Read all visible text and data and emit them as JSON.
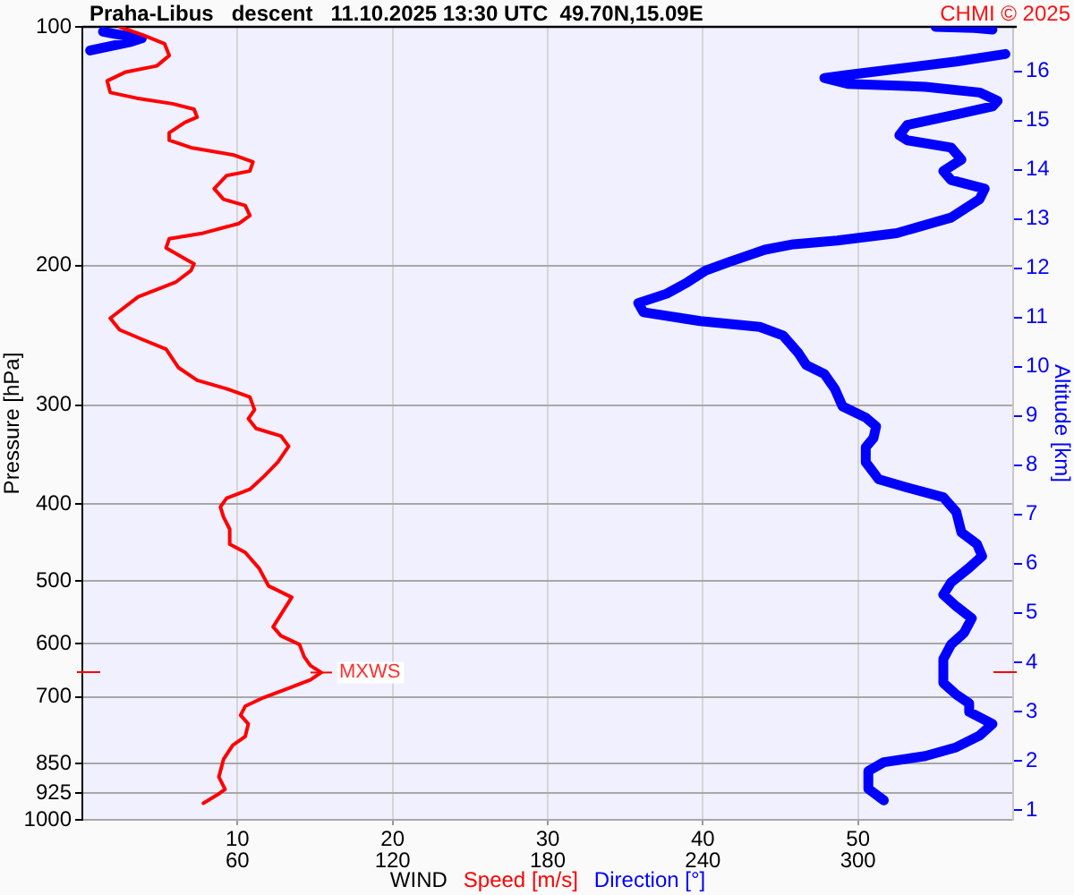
{
  "chart_data": {
    "type": "line",
    "title": "Praha-Libus   descent   11.10.2025 13:30 UTC  49.70N,15.09E",
    "xlabel": "WIND",
    "ylabel": "Pressure [hPa]",
    "y2label": "Altitude [km]",
    "annotations": [
      "CHMI © 2025",
      {
        "text": "MXWS",
        "x": 15.4,
        "y": 652
      }
    ],
    "xlim": [
      0,
      60
    ],
    "xticks": [
      10,
      20,
      30,
      40,
      50
    ],
    "x2lim": [
      0,
      360
    ],
    "x2ticks": [
      60,
      120,
      180,
      240,
      300
    ],
    "ylim": [
      1000,
      100
    ],
    "yticks": [
      100,
      200,
      300,
      400,
      500,
      600,
      700,
      850,
      925,
      1000
    ],
    "y2lim": [
      0.8,
      16.9
    ],
    "y2ticks": [
      1,
      2,
      3,
      4,
      5,
      6,
      7,
      8,
      9,
      10,
      11,
      12,
      13,
      14,
      15,
      16
    ],
    "log": true,
    "grid": true,
    "legend": "bottom",
    "series": [
      {
        "name": "Speed [m/s]",
        "color": "#ff0000",
        "x": [
          2.4,
          3.9,
          5.3,
          5.6,
          4.8,
          2.8,
          1.6,
          1.8,
          3.5,
          5.8,
          7.2,
          7.4,
          6.6,
          5.6,
          5.6,
          7.0,
          9.7,
          11.0,
          10.8,
          9.3,
          8.5,
          9.1,
          10.5,
          10.8,
          10.1,
          7.8,
          5.6,
          5.4,
          6.6,
          7.2,
          7.0,
          6.0,
          3.6,
          1.8,
          2.4,
          3.9,
          5.4,
          6.2,
          7.4,
          9.3,
          10.8,
          11.1,
          10.7,
          11.2,
          12.8,
          13.3,
          12.6,
          11.7,
          10.8,
          9.3,
          8.9,
          9.1,
          9.5,
          9.5,
          10.5,
          11.4,
          12.0,
          13.5,
          12.8,
          12.3,
          12.8,
          14.0,
          14.3,
          14.7,
          15.4,
          14.7,
          13.5,
          11.7,
          10.5,
          10.2,
          10.7,
          10.5,
          9.7,
          9.1,
          8.8,
          9.2,
          8.7,
          7.8
        ],
        "values": [
          100,
          102.4,
          105,
          108.7,
          112,
          114,
          117,
          121,
          123,
          125,
          127,
          130,
          132,
          136,
          139,
          142,
          145,
          148,
          152,
          154,
          160,
          165,
          168,
          173,
          177,
          182,
          185,
          190,
          196,
          199,
          203,
          210,
          219,
          233,
          241,
          248,
          255,
          269,
          279,
          286,
          293,
          304,
          312,
          321,
          328,
          338,
          354,
          369,
          383,
          393,
          403,
          415,
          430,
          449,
          460,
          482,
          507,
          524,
          551,
          571,
          586,
          601,
          623,
          639,
          652,
          666,
          680,
          701,
          719,
          738,
          757,
          785,
          805,
          839,
          883,
          915,
          930,
          953
        ]
      },
      {
        "name": "Direction [°]",
        "color": "#0000ff",
        "axis": "x2",
        "x": [
          330,
          345,
          352,
          null,
          8,
          12,
          23,
          19,
          3,
          null,
          357,
          338,
          315,
          296,
          287,
          296,
          326,
          347,
          354,
          352,
          338,
          319,
          316,
          319,
          336,
          340,
          333,
          336,
          349,
          347,
          336,
          315,
          292,
          275,
          264,
          250,
          241,
          234,
          226,
          215,
          217,
          239,
          262,
          271,
          277,
          280,
          287,
          291,
          294,
          303,
          307,
          306,
          303,
          303,
          308,
          319,
          333,
          338,
          340,
          346,
          348,
          343,
          336,
          333,
          338,
          344,
          341,
          336,
          333,
          333,
          338,
          343,
          343,
          352,
          347,
          338,
          326,
          310,
          304,
          304,
          310
        ],
        "values": [
          100,
          100.3,
          100.8,
          null,
          101.4,
          102,
          103.4,
          104.4,
          107.1,
          null,
          108.2,
          110.6,
          113,
          115,
          116,
          118,
          119,
          121,
          124,
          126,
          129,
          133,
          137,
          139,
          142,
          147,
          152,
          156,
          160,
          165,
          174,
          182,
          186,
          188,
          191,
          198,
          203,
          210,
          217,
          223,
          229,
          235,
          239,
          245,
          258,
          267,
          274,
          286,
          301,
          311,
          319,
          330,
          339,
          354,
          372,
          381,
          392,
          409,
          434,
          449,
          465,
          481,
          502,
          520,
          538,
          557,
          581,
          601,
          627,
          672,
          695,
          713,
          731,
          757,
          783,
          810,
          831,
          846,
          868,
          914,
          945
        ]
      }
    ]
  }
}
